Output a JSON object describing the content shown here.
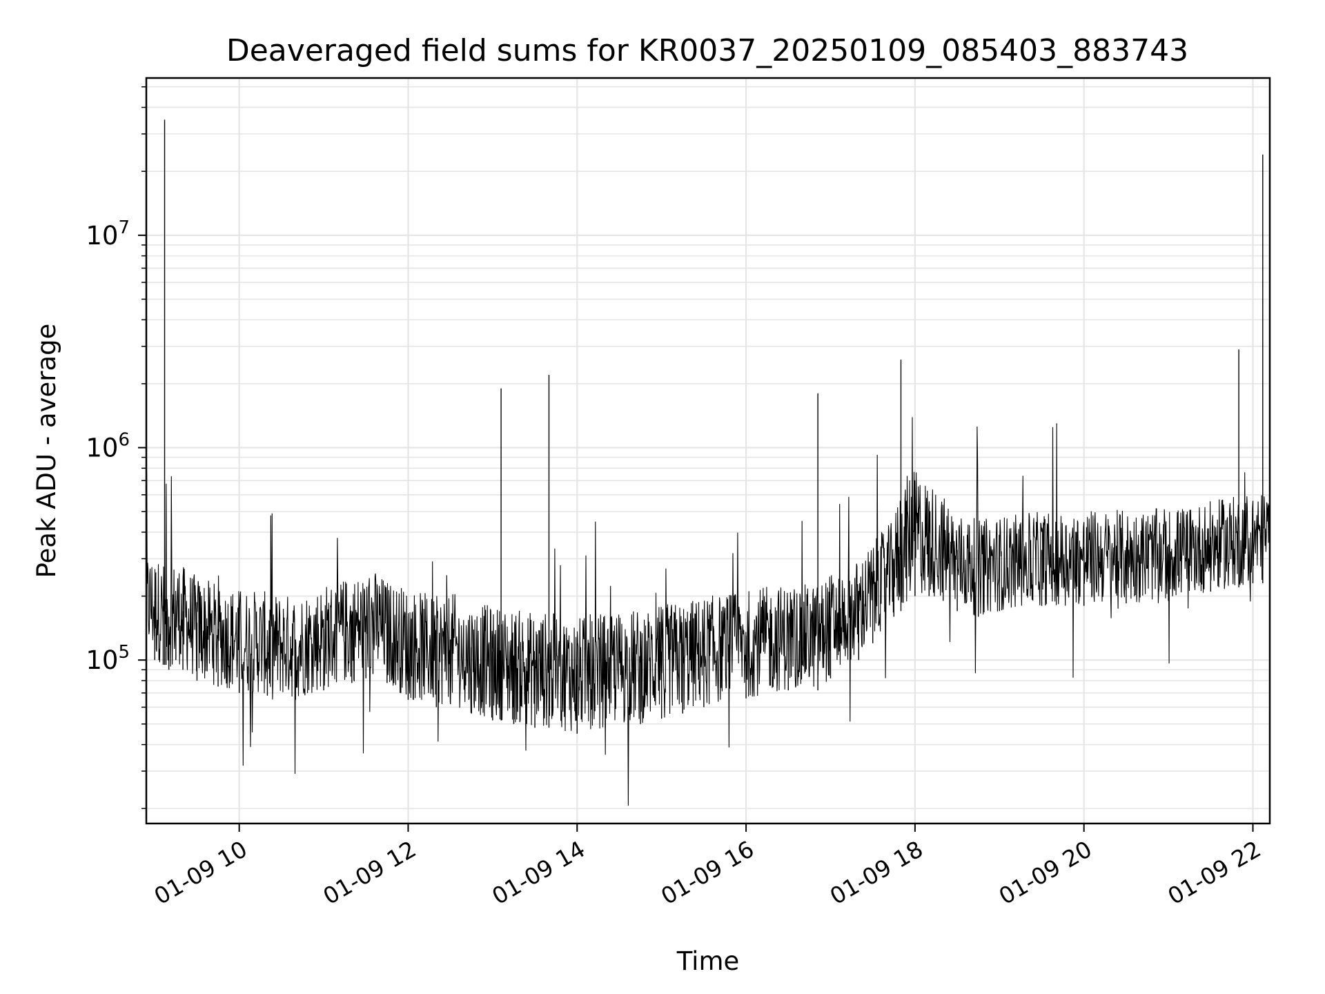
{
  "chart_data": {
    "type": "line",
    "title": "Deaveraged field sums for KR0037_20250109_085403_883743",
    "xlabel": "Time",
    "ylabel": "Peak ADU - average",
    "y_scale": "log",
    "ylim": [
      17000,
      55000000
    ],
    "xlim": [
      "2025-01-09 08:54",
      "2025-01-09 22:12"
    ],
    "grid": true,
    "line_color": "#000000",
    "grid_color": "#e5e5e5",
    "x_ticks": [
      {
        "value": "2025-01-09 10:00",
        "label": "01-09 10"
      },
      {
        "value": "2025-01-09 12:00",
        "label": "01-09 12"
      },
      {
        "value": "2025-01-09 14:00",
        "label": "01-09 14"
      },
      {
        "value": "2025-01-09 16:00",
        "label": "01-09 16"
      },
      {
        "value": "2025-01-09 18:00",
        "label": "01-09 18"
      },
      {
        "value": "2025-01-09 20:00",
        "label": "01-09 20"
      },
      {
        "value": "2025-01-09 22:00",
        "label": "01-09 22"
      }
    ],
    "y_ticks": [
      {
        "value": 100000,
        "base": "10",
        "exp": "5"
      },
      {
        "value": 1000000,
        "base": "10",
        "exp": "6"
      },
      {
        "value": 10000000,
        "base": "10",
        "exp": "7"
      }
    ],
    "series": [
      {
        "x": [
          "2025-01-09 08:54",
          "2025-01-09 09:00",
          "2025-01-09 09:06",
          "2025-01-09 09:07",
          "2025-01-09 09:08",
          "2025-01-09 09:10",
          "2025-01-09 09:15",
          "2025-01-09 09:20",
          "2025-01-09 09:30",
          "2025-01-09 09:45",
          "2025-01-09 10:00",
          "2025-01-09 10:20",
          "2025-01-09 10:40",
          "2025-01-09 11:00",
          "2025-01-09 11:20",
          "2025-01-09 11:30",
          "2025-01-09 11:35",
          "2025-01-09 11:45",
          "2025-01-09 12:00",
          "2025-01-09 12:20",
          "2025-01-09 12:30",
          "2025-01-09 12:45",
          "2025-01-09 13:00",
          "2025-01-09 13:06",
          "2025-01-09 13:15",
          "2025-01-09 13:30",
          "2025-01-09 13:40",
          "2025-01-09 14:00",
          "2025-01-09 14:20",
          "2025-01-09 14:45",
          "2025-01-09 15:00",
          "2025-01-09 15:15",
          "2025-01-09 15:30",
          "2025-01-09 16:00",
          "2025-01-09 16:30",
          "2025-01-09 16:51",
          "2025-01-09 17:00",
          "2025-01-09 17:20",
          "2025-01-09 17:30",
          "2025-01-09 17:45",
          "2025-01-09 17:50",
          "2025-01-09 18:00",
          "2025-01-09 18:10",
          "2025-01-09 18:20",
          "2025-01-09 18:30",
          "2025-01-09 18:45",
          "2025-01-09 19:00",
          "2025-01-09 19:30",
          "2025-01-09 20:00",
          "2025-01-09 20:30",
          "2025-01-09 21:00",
          "2025-01-09 21:30",
          "2025-01-09 21:50",
          "2025-01-09 22:00",
          "2025-01-09 22:07",
          "2025-01-09 22:12"
        ],
        "y": [
          210000,
          190000,
          180000,
          35000000,
          170000,
          160000,
          190000,
          170000,
          150000,
          140000,
          135000,
          130000,
          125000,
          140000,
          150000,
          160000,
          170000,
          150000,
          130000,
          120000,
          125000,
          115000,
          110000,
          1900000,
          105000,
          100000,
          2200000,
          95000,
          100000,
          105000,
          110000,
          115000,
          120000,
          130000,
          140000,
          1800000,
          160000,
          190000,
          230000,
          300000,
          2600000,
          550000,
          450000,
          380000,
          330000,
          300000,
          320000,
          330000,
          340000,
          340000,
          350000,
          380000,
          2900000,
          420000,
          24000000,
          450000
        ],
        "band_low": [
          110000,
          100000,
          95000,
          95000,
          95000,
          90000,
          100000,
          90000,
          80000,
          75000,
          70000,
          68000,
          65000,
          72000,
          78000,
          82000,
          86000,
          78000,
          65000,
          60000,
          62000,
          56000,
          52000,
          52000,
          50000,
          48000,
          48000,
          45000,
          48000,
          50000,
          53000,
          56000,
          60000,
          66000,
          72000,
          72000,
          82000,
          100000,
          120000,
          160000,
          170000,
          200000,
          200000,
          190000,
          170000,
          160000,
          170000,
          180000,
          180000,
          185000,
          190000,
          210000,
          220000,
          230000,
          230000,
          240000
        ],
        "band_high": [
          330000,
          310000,
          290000,
          290000,
          280000,
          270000,
          300000,
          280000,
          250000,
          230000,
          220000,
          210000,
          205000,
          230000,
          250000,
          260000,
          270000,
          240000,
          220000,
          200000,
          210000,
          190000,
          180000,
          180000,
          175000,
          170000,
          170000,
          160000,
          170000,
          175000,
          185000,
          190000,
          200000,
          215000,
          230000,
          230000,
          260000,
          300000,
          360000,
          460000,
          700000,
          800000,
          700000,
          600000,
          500000,
          460000,
          480000,
          500000,
          510000,
          510000,
          520000,
          560000,
          600000,
          620000,
          620000,
          650000
        ]
      }
    ]
  }
}
